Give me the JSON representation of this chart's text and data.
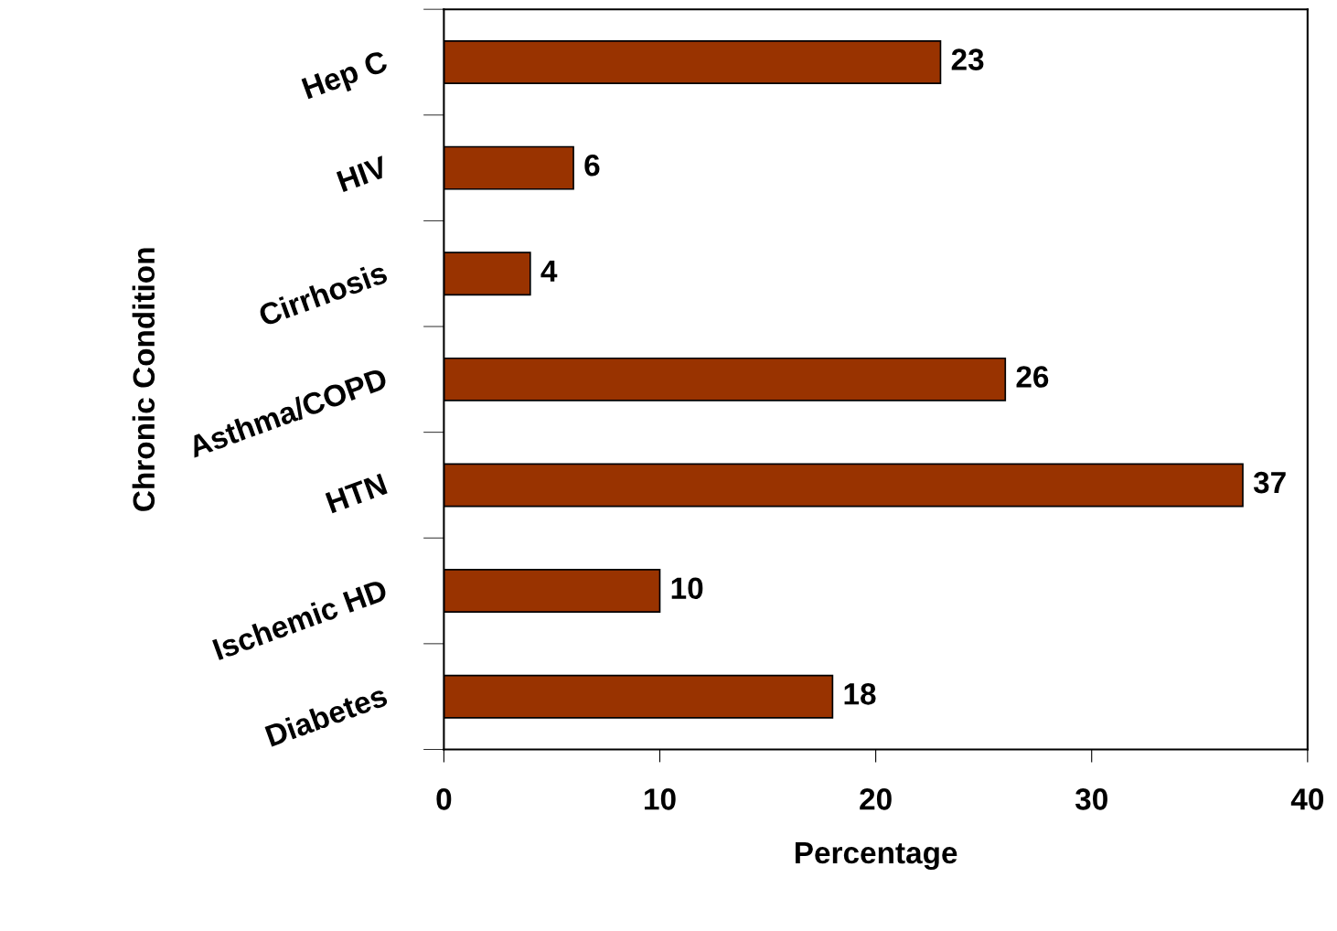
{
  "chart_data": {
    "type": "bar",
    "orientation": "horizontal",
    "xlabel": "Percentage",
    "ylabel": "Chronic Condition",
    "categories": [
      "Hep C",
      "HIV",
      "Cirrhosis",
      "Asthma/COPD",
      "HTN",
      "Ischemic HD",
      "Diabetes"
    ],
    "values": [
      23,
      6,
      4,
      26,
      37,
      10,
      18
    ],
    "color": "#993300",
    "xlim": [
      0,
      40
    ],
    "xticks": [
      0,
      10,
      20,
      30,
      40
    ],
    "data_labels": true,
    "grid": false
  }
}
